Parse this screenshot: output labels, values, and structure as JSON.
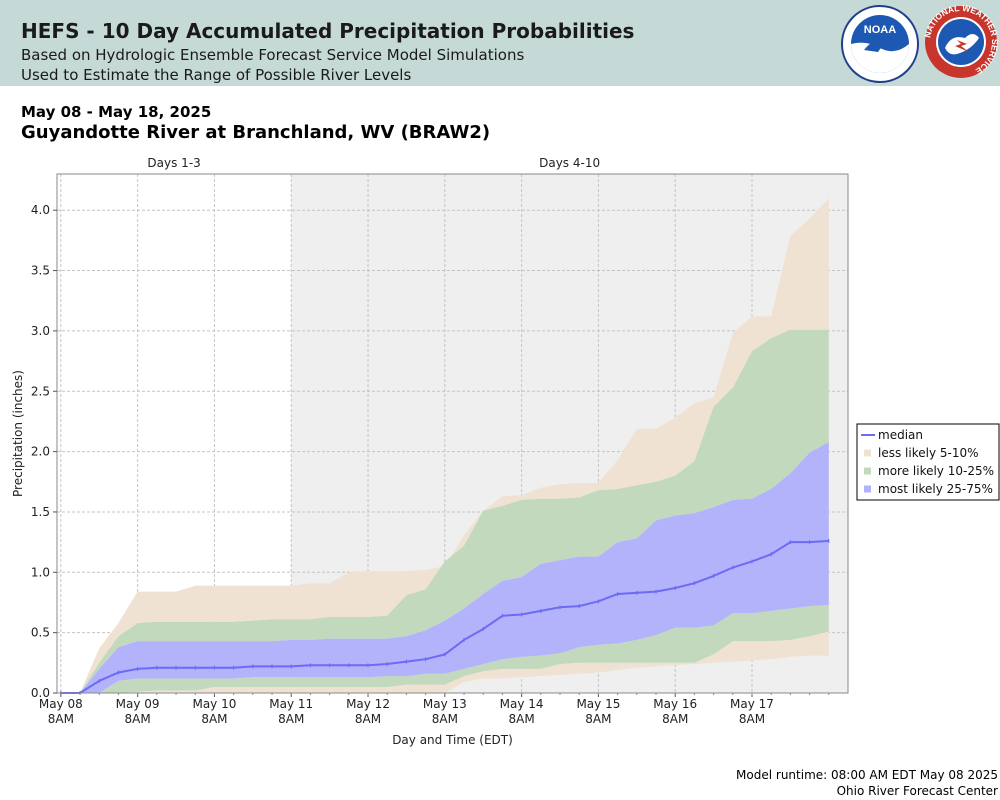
{
  "header": {
    "title": "HEFS - 10 Day Accumulated Precipitation Probabilities",
    "subtitle_line1": "Based on Hydrologic Ensemble Forecast Service Model Simulations",
    "subtitle_line2": "Used to Estimate the Range of Possible River Levels",
    "logo_noaa_text": "NOAA",
    "logo_nws_text": "NATIONAL WEATHER SERVICE"
  },
  "date_range": "May 08 - May 18, 2025",
  "station": "Guyandotte River at Branchland, WV (BRAW2)",
  "footer": {
    "runtime": "Model runtime: 08:00 AM EDT May 08 2025",
    "center": "Ohio River Forecast Center"
  },
  "colors": {
    "median": "#6b6bf5",
    "band_5_10": "#efe2d3",
    "band_10_25": "#c3d9bd",
    "band_25_75": "#b3b3fb",
    "days_4_10_shade": "#efefef",
    "header_bg": "#c5dad7"
  },
  "chart_data": {
    "type": "area",
    "band_labels": [
      "Days 1-3",
      "Days 4-10"
    ],
    "xlabel": "Day and Time (EDT)",
    "ylabel": "Precipitation (inches)",
    "ylim": [
      0,
      4.3
    ],
    "yticks": [
      "0.0",
      "0.5",
      "1.0",
      "1.5",
      "2.0",
      "2.5",
      "3.0",
      "3.5",
      "4.0"
    ],
    "x_ticks": [
      {
        "day": 0,
        "line1": "May 08",
        "line2": "8AM"
      },
      {
        "day": 1,
        "line1": "May 09",
        "line2": "8AM"
      },
      {
        "day": 2,
        "line1": "May 10",
        "line2": "8AM"
      },
      {
        "day": 3,
        "line1": "May 11",
        "line2": "8AM"
      },
      {
        "day": 4,
        "line1": "May 12",
        "line2": "8AM"
      },
      {
        "day": 5,
        "line1": "May 13",
        "line2": "8AM"
      },
      {
        "day": 6,
        "line1": "May 14",
        "line2": "8AM"
      },
      {
        "day": 7,
        "line1": "May 15",
        "line2": "8AM"
      },
      {
        "day": 8,
        "line1": "May 16",
        "line2": "8AM"
      },
      {
        "day": 9,
        "line1": "May 17",
        "line2": "8AM"
      }
    ],
    "xlim": [
      -0.05,
      10.25
    ],
    "shade_days_4_10_start": 3,
    "x": [
      0,
      0.25,
      0.5,
      0.75,
      1,
      1.25,
      1.5,
      1.75,
      2,
      2.25,
      2.5,
      2.75,
      3,
      3.25,
      3.5,
      3.75,
      4,
      4.25,
      4.5,
      4.75,
      5,
      5.25,
      5.5,
      5.75,
      6,
      6.25,
      6.5,
      6.75,
      7,
      7.25,
      7.5,
      7.75,
      8,
      8.25,
      8.5,
      8.75,
      9,
      9.25,
      9.5,
      9.75,
      10
    ],
    "series": [
      {
        "name": "less likely 5-10%",
        "key": "p05",
        "values": [
          0,
          0,
          0,
          0,
          0,
          0,
          0,
          0,
          0,
          0,
          0,
          0,
          0,
          0,
          0,
          0,
          0,
          0,
          0,
          0,
          0,
          0.09,
          0.12,
          0.12,
          0.13,
          0.14,
          0.15,
          0.16,
          0.17,
          0.19,
          0.21,
          0.22,
          0.23,
          0.24,
          0.25,
          0.26,
          0.27,
          0.28,
          0.3,
          0.31,
          0.31
        ]
      },
      {
        "name": "more likely 10-25%",
        "key": "p10",
        "values": [
          0,
          0,
          0,
          0,
          0.01,
          0.02,
          0.02,
          0.02,
          0.05,
          0.05,
          0.05,
          0.05,
          0.05,
          0.05,
          0.05,
          0.05,
          0.05,
          0.05,
          0.07,
          0.07,
          0.07,
          0.14,
          0.18,
          0.2,
          0.2,
          0.2,
          0.24,
          0.25,
          0.25,
          0.25,
          0.25,
          0.25,
          0.25,
          0.25,
          0.32,
          0.43,
          0.43,
          0.43,
          0.44,
          0.47,
          0.51
        ]
      },
      {
        "name": "p25",
        "key": "p25",
        "values": [
          0,
          0,
          0,
          0.1,
          0.12,
          0.12,
          0.12,
          0.12,
          0.12,
          0.12,
          0.13,
          0.13,
          0.13,
          0.13,
          0.13,
          0.13,
          0.13,
          0.14,
          0.14,
          0.16,
          0.16,
          0.2,
          0.24,
          0.28,
          0.3,
          0.31,
          0.33,
          0.38,
          0.4,
          0.41,
          0.44,
          0.48,
          0.54,
          0.54,
          0.56,
          0.66,
          0.66,
          0.68,
          0.7,
          0.72,
          0.73
        ]
      },
      {
        "name": "median",
        "key": "p50",
        "values": [
          0,
          0,
          0.1,
          0.17,
          0.2,
          0.21,
          0.21,
          0.21,
          0.21,
          0.21,
          0.22,
          0.22,
          0.22,
          0.23,
          0.23,
          0.23,
          0.23,
          0.24,
          0.26,
          0.28,
          0.32,
          0.44,
          0.53,
          0.64,
          0.65,
          0.68,
          0.71,
          0.72,
          0.76,
          0.82,
          0.83,
          0.84,
          0.87,
          0.91,
          0.97,
          1.04,
          1.09,
          1.15,
          1.25,
          1.25,
          1.26
        ]
      },
      {
        "name": "p75",
        "key": "p75",
        "values": [
          0,
          0,
          0.2,
          0.38,
          0.43,
          0.43,
          0.43,
          0.43,
          0.43,
          0.43,
          0.43,
          0.43,
          0.44,
          0.44,
          0.45,
          0.45,
          0.45,
          0.45,
          0.47,
          0.52,
          0.6,
          0.7,
          0.82,
          0.93,
          0.96,
          1.07,
          1.1,
          1.13,
          1.13,
          1.25,
          1.28,
          1.43,
          1.47,
          1.49,
          1.54,
          1.6,
          1.61,
          1.69,
          1.82,
          1.99,
          2.08
        ]
      },
      {
        "name": "p90",
        "key": "p90",
        "values": [
          0,
          0,
          0.25,
          0.47,
          0.58,
          0.59,
          0.59,
          0.59,
          0.59,
          0.59,
          0.6,
          0.61,
          0.61,
          0.61,
          0.63,
          0.63,
          0.63,
          0.64,
          0.81,
          0.86,
          1.09,
          1.22,
          1.51,
          1.55,
          1.6,
          1.61,
          1.61,
          1.62,
          1.68,
          1.69,
          1.72,
          1.75,
          1.8,
          1.92,
          2.37,
          2.53,
          2.83,
          2.94,
          3.01,
          3.01,
          3.01
        ]
      },
      {
        "name": "p95",
        "key": "p95",
        "values": [
          0,
          0,
          0.37,
          0.58,
          0.84,
          0.84,
          0.84,
          0.89,
          0.89,
          0.89,
          0.89,
          0.89,
          0.89,
          0.91,
          0.91,
          1.0,
          1.01,
          1.01,
          1.01,
          1.02,
          1.05,
          1.31,
          1.51,
          1.63,
          1.64,
          1.7,
          1.73,
          1.74,
          1.74,
          1.93,
          2.19,
          2.19,
          2.28,
          2.4,
          2.45,
          2.98,
          3.12,
          3.12,
          3.79,
          3.93,
          4.1
        ]
      }
    ],
    "legend": {
      "placement": "right",
      "entries": [
        {
          "label": "median",
          "style": "line"
        },
        {
          "label": "less likely 5-10%",
          "style": "band_5_10"
        },
        {
          "label": "more likely 10-25%",
          "style": "band_10_25"
        },
        {
          "label": "most likely 25-75%",
          "style": "band_25_75"
        }
      ]
    },
    "grid": true
  }
}
